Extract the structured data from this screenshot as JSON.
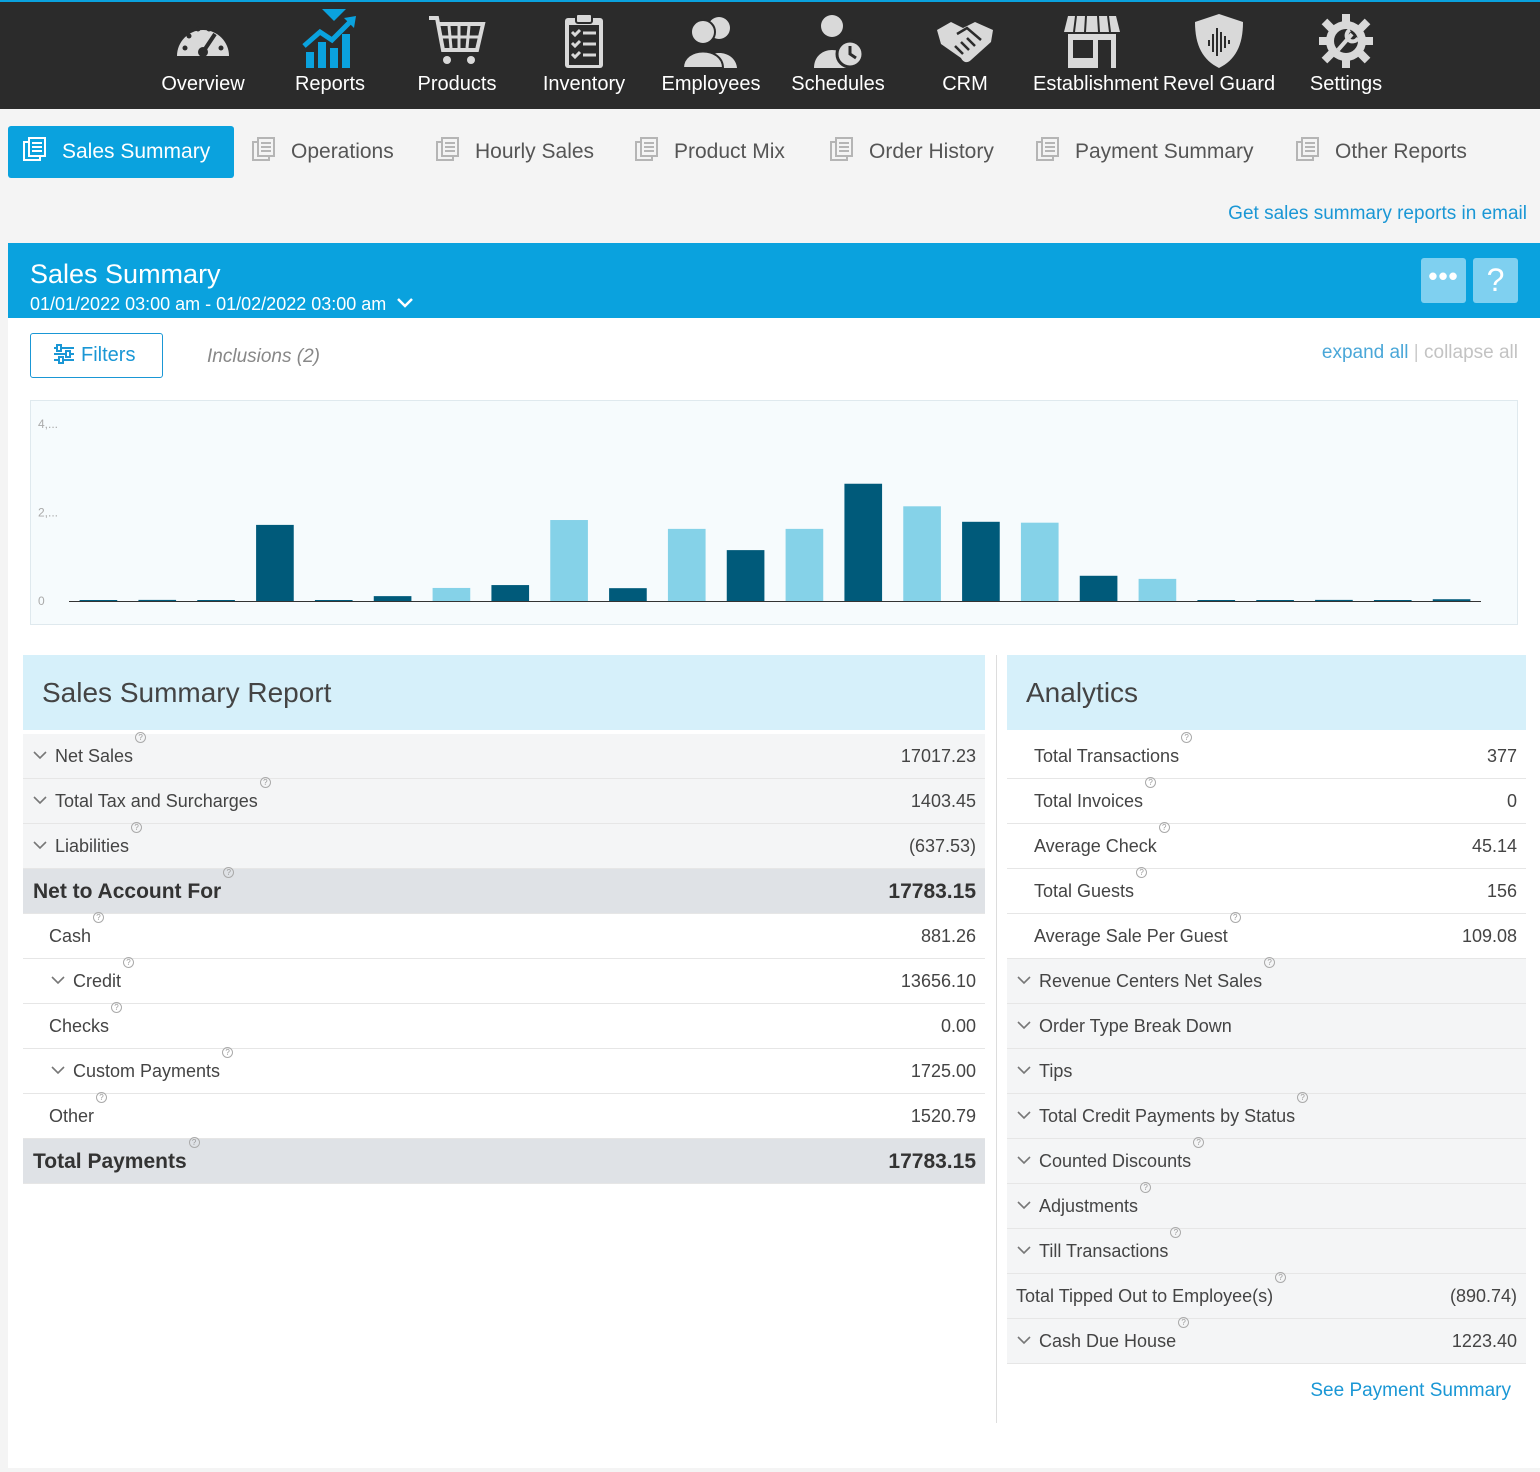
{
  "nav": {
    "items": [
      {
        "label": "Overview",
        "icon": "speedometer-icon"
      },
      {
        "label": "Reports",
        "icon": "chart-up-icon"
      },
      {
        "label": "Products",
        "icon": "cart-icon"
      },
      {
        "label": "Inventory",
        "icon": "clipboard-icon"
      },
      {
        "label": "Employees",
        "icon": "people-icon"
      },
      {
        "label": "Schedules",
        "icon": "person-clock-icon"
      },
      {
        "label": "CRM",
        "icon": "handshake-icon"
      },
      {
        "label": "Establishment",
        "icon": "storefront-icon"
      },
      {
        "label": "Revel Guard",
        "icon": "shield-icon"
      },
      {
        "label": "Settings",
        "icon": "gear-icon"
      }
    ],
    "active_index": 1
  },
  "tabs": [
    {
      "label": "Sales Summary"
    },
    {
      "label": "Operations"
    },
    {
      "label": "Hourly Sales"
    },
    {
      "label": "Product Mix"
    },
    {
      "label": "Order History"
    },
    {
      "label": "Payment Summary"
    },
    {
      "label": "Other Reports"
    }
  ],
  "email_link": "Get sales summary reports in email",
  "panel": {
    "title": "Sales Summary",
    "date_range": "01/01/2022 03:00 am - 01/02/2022 03:00 am",
    "more_label": "•••",
    "help_label": "?",
    "filters_label": "Filters",
    "inclusions_label": "Inclusions (2)",
    "expand_all": "expand all",
    "separator": "|",
    "collapse_all": "collapse all"
  },
  "chart_data": {
    "type": "bar",
    "y_tick_labels": [
      "4,...",
      "2,...",
      "0"
    ],
    "y_ticks": [
      4000,
      2000,
      0
    ],
    "ylim": [
      0,
      4000
    ],
    "colors": {
      "dark": "#005a7a",
      "light": "#85d2e8",
      "axis": "#333333"
    },
    "values": [
      10,
      25,
      8,
      1720,
      5,
      110,
      295,
      360,
      1830,
      290,
      1630,
      1150,
      1630,
      2650,
      2140,
      1790,
      1770,
      570,
      500,
      15,
      8,
      25,
      10,
      40
    ],
    "bar_colors": [
      "dark",
      "dark",
      "dark",
      "dark",
      "dark",
      "dark",
      "light",
      "dark",
      "light",
      "dark",
      "light",
      "dark",
      "light",
      "dark",
      "light",
      "dark",
      "light",
      "dark",
      "light",
      "dark",
      "dark",
      "dark",
      "dark",
      "dark"
    ]
  },
  "sales_report": {
    "title": "Sales Summary Report",
    "rows": [
      {
        "label": "Net Sales",
        "value": "17017.23",
        "style": "shade",
        "chevron": true,
        "indent": 0
      },
      {
        "label": "Total Tax and Surcharges",
        "value": "1403.45",
        "style": "shade",
        "chevron": true,
        "indent": 0
      },
      {
        "label": "Liabilities",
        "value": "(637.53)",
        "style": "shade",
        "chevron": true,
        "indent": 0
      },
      {
        "label": "Net to Account For",
        "value": "17783.15",
        "style": "total",
        "chevron": false,
        "indent": 0
      },
      {
        "label": "Cash",
        "value": "881.26",
        "style": "plain",
        "chevron": false,
        "indent": 1
      },
      {
        "label": "Credit",
        "value": "13656.10",
        "style": "plain",
        "chevron": true,
        "indent": 1
      },
      {
        "label": "Checks",
        "value": "0.00",
        "style": "plain",
        "chevron": false,
        "indent": 1
      },
      {
        "label": "Custom Payments",
        "value": "1725.00",
        "style": "plain",
        "chevron": true,
        "indent": 1
      },
      {
        "label": "Other",
        "value": "1520.79",
        "style": "plain",
        "chevron": false,
        "indent": 1
      },
      {
        "label": "Total Payments",
        "value": "17783.15",
        "style": "total",
        "chevron": false,
        "indent": 0
      }
    ]
  },
  "analytics": {
    "title": "Analytics",
    "rows": [
      {
        "label": "Total Transactions",
        "value": "377",
        "style": "plain",
        "chevron": false,
        "indent": 1
      },
      {
        "label": "Total Invoices",
        "value": "0",
        "style": "plain",
        "chevron": false,
        "indent": 1
      },
      {
        "label": "Average Check",
        "value": "45.14",
        "style": "plain",
        "chevron": false,
        "indent": 1
      },
      {
        "label": "Total Guests",
        "value": "156",
        "style": "plain",
        "chevron": false,
        "indent": 1
      },
      {
        "label": "Average Sale Per Guest",
        "value": "109.08",
        "style": "plain",
        "chevron": false,
        "indent": 1
      },
      {
        "label": "Revenue Centers Net Sales",
        "value": "",
        "style": "shade",
        "chevron": true,
        "indent": 0
      },
      {
        "label": "Order Type Break Down",
        "value": "",
        "style": "shade",
        "chevron": true,
        "indent": 0,
        "noq": true
      },
      {
        "label": "Tips",
        "value": "",
        "style": "shade",
        "chevron": true,
        "indent": 0,
        "noq": true
      },
      {
        "label": "Total Credit Payments by Status",
        "value": "",
        "style": "shade",
        "chevron": true,
        "indent": 0
      },
      {
        "label": "Counted Discounts",
        "value": "",
        "style": "shade",
        "chevron": true,
        "indent": 0
      },
      {
        "label": "Adjustments",
        "value": "",
        "style": "shade",
        "chevron": true,
        "indent": 0
      },
      {
        "label": "Till Transactions",
        "value": "",
        "style": "shade",
        "chevron": true,
        "indent": 0
      },
      {
        "label": "Total Tipped Out to Employee(s)",
        "value": "(890.74)",
        "style": "shade",
        "chevron": false,
        "indent": -1
      },
      {
        "label": "Cash Due House",
        "value": "1223.40",
        "style": "shade",
        "chevron": true,
        "indent": 0
      }
    ],
    "see_payment_summary": "See Payment Summary"
  }
}
